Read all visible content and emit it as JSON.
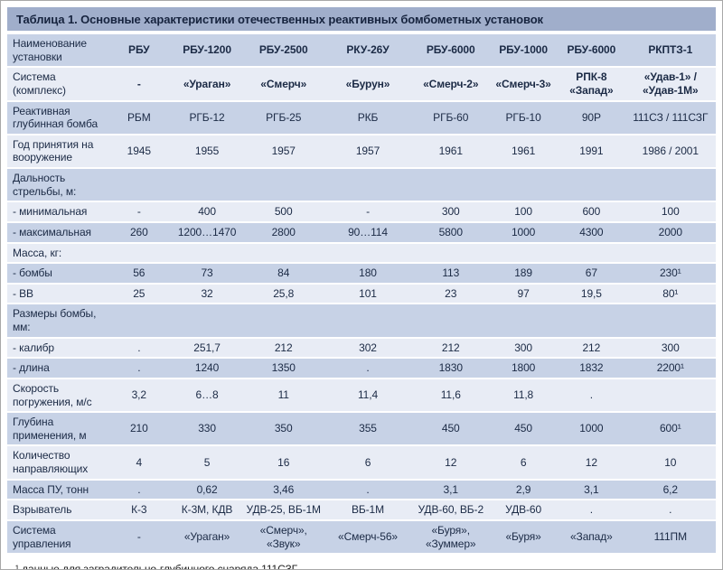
{
  "table": {
    "title": "Таблица 1. Основные характеристики отечественных реактивных бомбометных установок",
    "columns": [
      "Наименование установки",
      "РБУ",
      "РБУ-1200",
      "РБУ-2500",
      "РКУ-26У",
      "РБУ-6000",
      "РБУ-1000",
      "РБУ-6000",
      "РКПТЗ-1"
    ],
    "rows": [
      {
        "label": "Система (комплекс)",
        "values": [
          "-",
          "«Ураган»",
          "«Смерч»",
          "«Бурун»",
          "«Смерч-2»",
          "«Смерч-3»",
          "РПК-8 «Запад»",
          "«Удав-1» / «Удав-1М»"
        ]
      },
      {
        "label": "Реактивная глубинная бомба",
        "values": [
          "РБМ",
          "РГБ-12",
          "РГБ-25",
          "РКБ",
          "РГБ-60",
          "РГБ-10",
          "90Р",
          "111СЗ / 111СЗГ"
        ]
      },
      {
        "label": "Год принятия на вооружение",
        "values": [
          "1945",
          "1955",
          "1957",
          "1957",
          "1961",
          "1961",
          "1991",
          "1986 / 2001"
        ]
      },
      {
        "label": "Дальность стрельбы, м:",
        "values": [
          "",
          "",
          "",
          "",
          "",
          "",
          "",
          ""
        ]
      },
      {
        "label": "- минимальная",
        "values": [
          "-",
          "400",
          "500",
          "-",
          "300",
          "100",
          "600",
          "100"
        ]
      },
      {
        "label": "- максимальная",
        "values": [
          "260",
          "1200…1470",
          "2800",
          "90…114",
          "5800",
          "1000",
          "4300",
          "2000"
        ]
      },
      {
        "label": "Масса, кг:",
        "values": [
          "",
          "",
          "",
          "",
          "",
          "",
          "",
          ""
        ]
      },
      {
        "label": "- бомбы",
        "values": [
          "56",
          "73",
          "84",
          "180",
          "113",
          "189",
          "67",
          "230¹"
        ]
      },
      {
        "label": "- ВВ",
        "values": [
          "25",
          "32",
          "25,8",
          "101",
          "23",
          "97",
          "19,5",
          "80¹"
        ]
      },
      {
        "label": "Размеры бомбы, мм:",
        "values": [
          "",
          "",
          "",
          "",
          "",
          "",
          "",
          ""
        ]
      },
      {
        "label": "- калибр",
        "values": [
          ".",
          "251,7",
          "212",
          "302",
          "212",
          "300",
          "212",
          "300"
        ]
      },
      {
        "label": "- длина",
        "values": [
          ".",
          "1240",
          "1350",
          ".",
          "1830",
          "1800",
          "1832",
          "2200¹"
        ]
      },
      {
        "label": "Скорость погружения, м/с",
        "values": [
          "3,2",
          "6…8",
          "11",
          "11,4",
          "11,6",
          "11,8",
          ".",
          ""
        ]
      },
      {
        "label": "Глубина применения, м",
        "values": [
          "210",
          "330",
          "350",
          "355",
          "450",
          "450",
          "1000",
          "600¹"
        ]
      },
      {
        "label": "Количество направляющих",
        "values": [
          "4",
          "5",
          "16",
          "6",
          "12",
          "6",
          "12",
          "10"
        ]
      },
      {
        "label": "Масса ПУ, тонн",
        "values": [
          ".",
          "0,62",
          "3,46",
          ".",
          "3,1",
          "2,9",
          "3,1",
          "6,2"
        ]
      },
      {
        "label": "Взрыватель",
        "values": [
          "К-3",
          "К-3М, КДВ",
          "УДВ-25, ВБ-1М",
          "ВБ-1М",
          "УДВ-60, ВБ-2",
          "УДВ-60",
          ".",
          "."
        ]
      },
      {
        "label": "Система управления",
        "values": [
          "-",
          "«Ураган»",
          "«Смерч», «Звук»",
          "«Смерч-56»",
          "«Буря», «Зуммер»",
          "«Буря»",
          "«Запад»",
          "111ПМ"
        ]
      }
    ]
  },
  "footnote": "¹ данные для заградительно-глубинного снаряда 111СЗГ",
  "colors": {
    "title_bar": "#a0aecb",
    "row_medium": "#c7d2e6",
    "row_light": "#e8ecf5",
    "text": "#1b2a45"
  }
}
